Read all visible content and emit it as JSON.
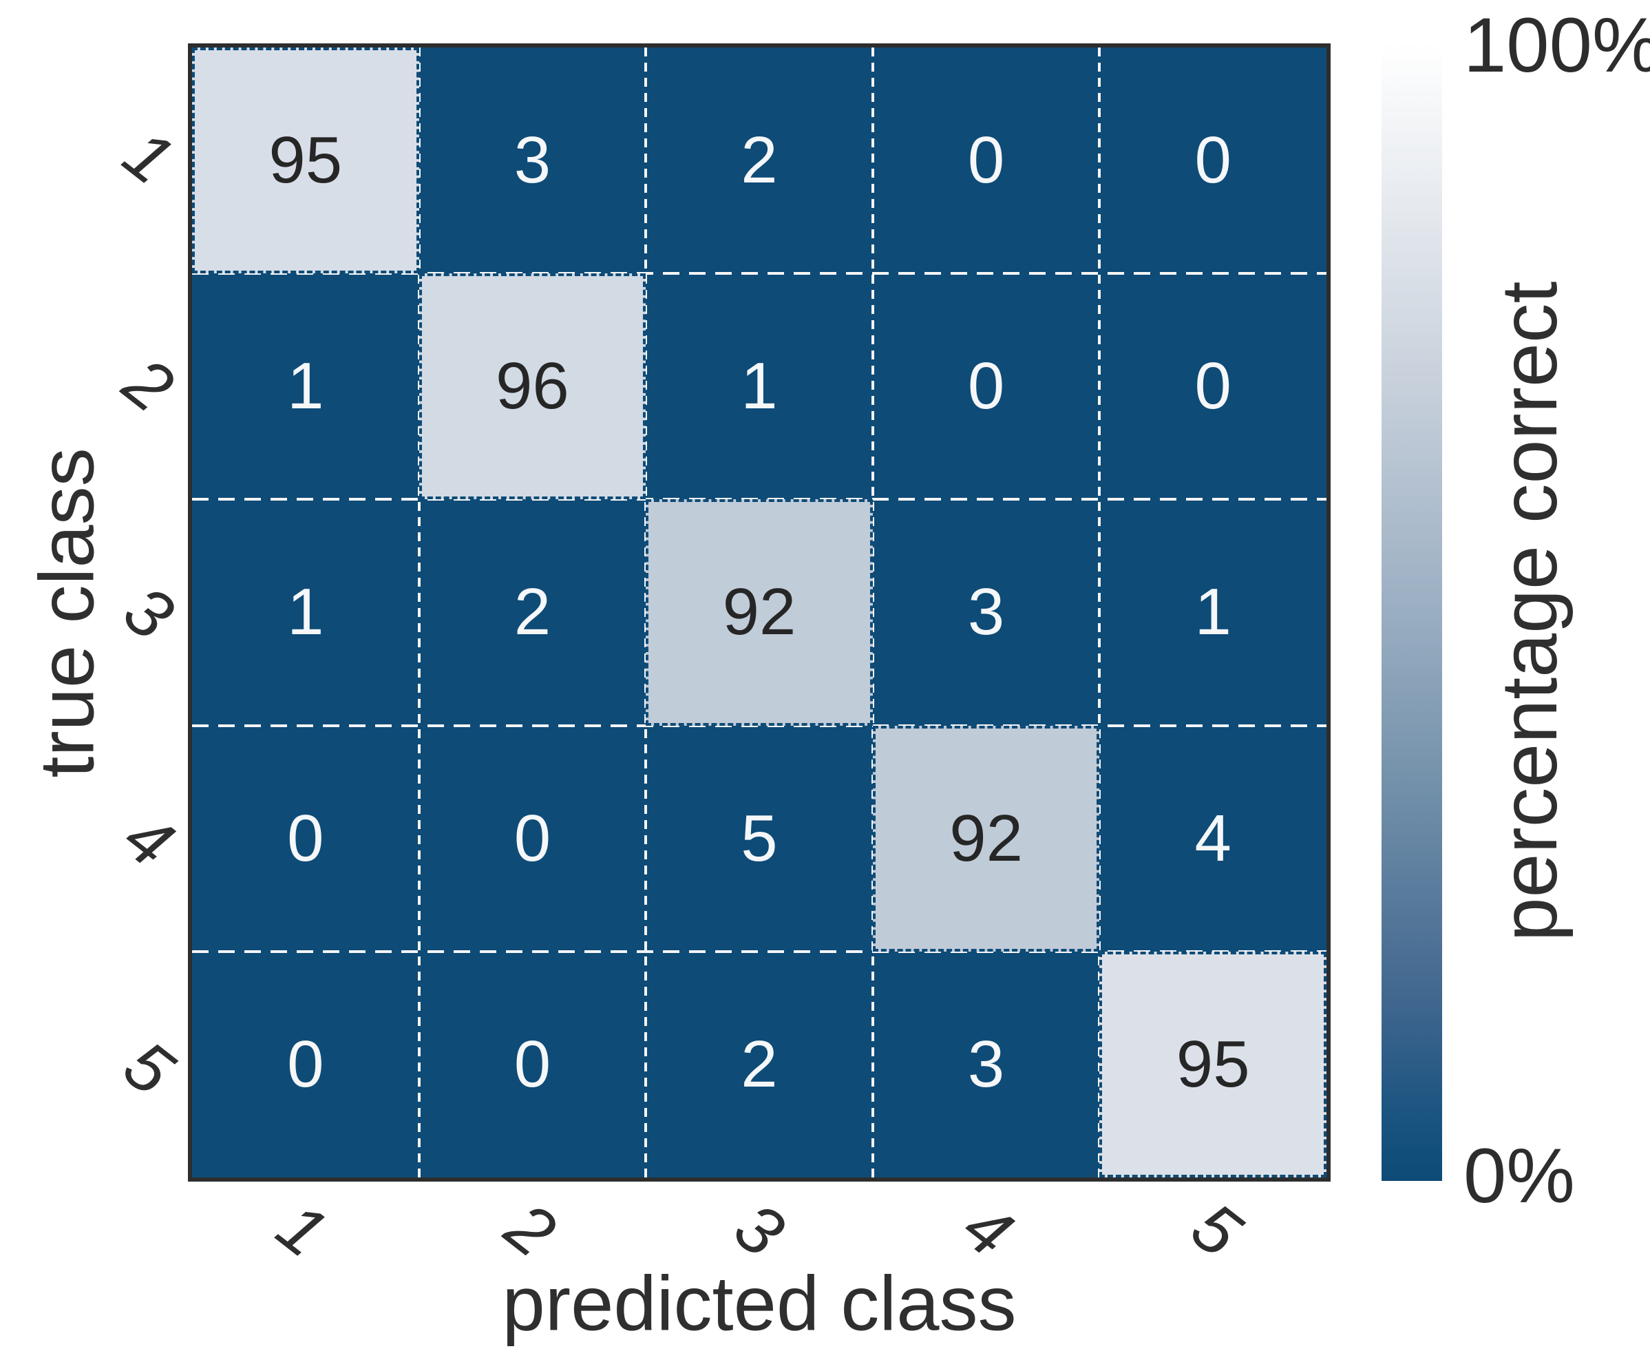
{
  "chart_data": {
    "type": "heatmap",
    "title": "",
    "xlabel": "predicted class",
    "ylabel": "true class",
    "x_tick_labels": [
      "1",
      "2",
      "3",
      "4",
      "5"
    ],
    "y_tick_labels": [
      "1",
      "2",
      "3",
      "4",
      "5"
    ],
    "categories": [
      "1",
      "2",
      "3",
      "4",
      "5"
    ],
    "matrix": [
      [
        95,
        3,
        2,
        0,
        0
      ],
      [
        1,
        96,
        1,
        0,
        0
      ],
      [
        1,
        2,
        92,
        3,
        1
      ],
      [
        0,
        0,
        5,
        92,
        4
      ],
      [
        0,
        0,
        2,
        3,
        95
      ]
    ],
    "value_range": [
      0,
      100
    ],
    "grid": "dashed-white",
    "legend_position": "right-colorbar",
    "colorbar": {
      "title": "percentage correct",
      "max_label": "100%",
      "min_label": "0%",
      "min": 0,
      "max": 100
    }
  },
  "colors": {
    "dark_cell": "#0e4b77",
    "diagonal_cells": [
      "#d8dee8",
      "#d2dae4",
      "#c1ccd9",
      "#c0cbd8",
      "#dce1e9"
    ],
    "text_on_dark": "#f5f7f9",
    "text_on_light": "#262626",
    "grid_dash": "#f5f5f5",
    "frame": "#2d2d2d",
    "colorbar_top": "#ffffff",
    "colorbar_bottom": "#0e4b77",
    "light_threshold": 50
  }
}
